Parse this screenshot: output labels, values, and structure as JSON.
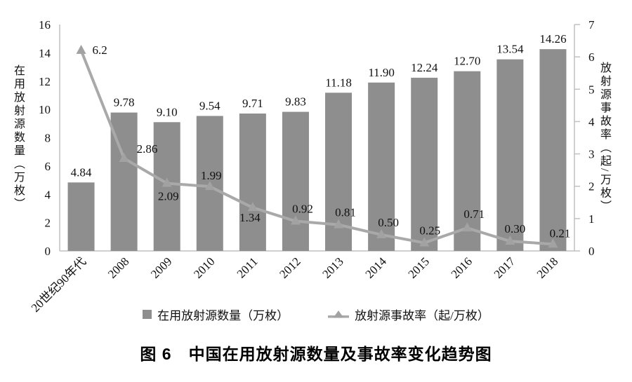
{
  "figure": {
    "caption": "图 6　中国在用放射源数量及事故率变化趋势图"
  },
  "colors": {
    "bar": "#8e8e8e",
    "line": "#a9a9a9",
    "marker": "#a2a2a2",
    "axis": "#c0c0c0",
    "text": "#111111"
  },
  "legend": [
    {
      "swatch": "bar-square",
      "label": "在用放射源数量（万枚）"
    },
    {
      "swatch": "line-triangle",
      "label": "放射源事故率（起/万枚）"
    }
  ],
  "chart_data": {
    "type": "bar",
    "subtype": "combo-bar-line-dual-axis",
    "title": "图 6　中国在用放射源数量及事故率变化趋势图",
    "categories": [
      "20世纪90年代",
      "2008",
      "2009",
      "2010",
      "2011",
      "2012",
      "2013",
      "2014",
      "2015",
      "2016",
      "2017",
      "2018"
    ],
    "series": [
      {
        "name": "在用放射源数量（万枚）",
        "type": "bar",
        "axis": "left",
        "values": [
          4.84,
          9.78,
          9.1,
          9.54,
          9.71,
          9.83,
          11.18,
          11.9,
          12.24,
          12.7,
          13.54,
          14.26
        ],
        "labels": [
          "4.84",
          "9.78",
          "9.10",
          "9.54",
          "9.71",
          "9.83",
          "11.18",
          "11.90",
          "12.24",
          "12.70",
          "13.54",
          "14.26"
        ]
      },
      {
        "name": "放射源事故率（起/万枚）",
        "type": "line",
        "axis": "right",
        "values": [
          6.2,
          2.86,
          2.09,
          1.99,
          1.34,
          0.92,
          0.81,
          0.5,
          0.25,
          0.71,
          0.3,
          0.21
        ],
        "labels": [
          "6.2",
          "2.86",
          "2.09",
          "1.99",
          "1.34",
          "0.92",
          "0.81",
          "0.50",
          "0.25",
          "0.71",
          "0.30",
          "0.21"
        ]
      }
    ],
    "left_axis": {
      "label": "在用放射源数量（万枚）",
      "min": 0,
      "max": 16,
      "step": 2
    },
    "right_axis": {
      "label": "放射源事故率（起/万枚）",
      "min": 0,
      "max": 7,
      "step": 1
    },
    "grid": false,
    "legend_position": "bottom"
  }
}
